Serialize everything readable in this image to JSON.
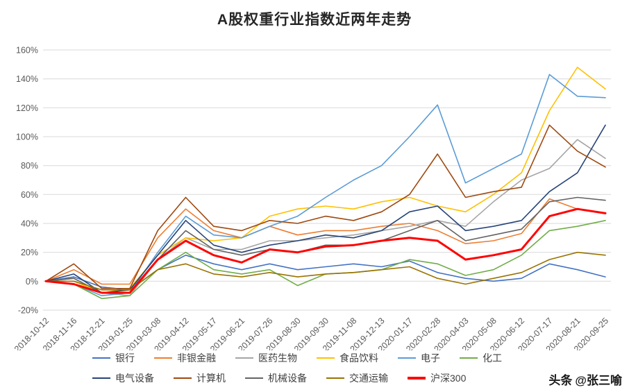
{
  "title": "A股权重行业指数近两年走势",
  "watermark": {
    "logo": "头条",
    "handle": "@张三喻"
  },
  "chart_data": {
    "type": "line",
    "title": "A股权重行业指数近两年走势",
    "xlabel": "",
    "ylabel": "",
    "ylim": [
      -20,
      160
    ],
    "ytick_step": 20,
    "ytick_suffix": "%",
    "grid": "horizontal",
    "legend_position": "bottom",
    "categories": [
      "2018-10-12",
      "2018-11-16",
      "2018-12-21",
      "2019-01-25",
      "2019-03-08",
      "2019-04-12",
      "2019-05-17",
      "2019-06-21",
      "2019-07-26",
      "2019-08-30",
      "2019-09-30",
      "2019-11-08",
      "2019-12-13",
      "2020-01-17",
      "2020-02-28",
      "2020-04-03",
      "2020-05-08",
      "2020-06-12",
      "2020-07-17",
      "2020-08-21",
      "2020-09-25"
    ],
    "series": [
      {
        "name": "银行",
        "color": "#4472C4",
        "width": 1.6,
        "values": [
          0,
          3,
          -4,
          -6,
          8,
          18,
          12,
          8,
          12,
          8,
          10,
          12,
          10,
          14,
          6,
          2,
          0,
          2,
          12,
          8,
          3
        ]
      },
      {
        "name": "非银金融",
        "color": "#ED7D31",
        "width": 1.6,
        "values": [
          0,
          8,
          -2,
          -2,
          30,
          50,
          35,
          30,
          38,
          32,
          35,
          35,
          38,
          40,
          35,
          26,
          28,
          33,
          57,
          50,
          47
        ]
      },
      {
        "name": "医药生物",
        "color": "#A5A5A5",
        "width": 1.6,
        "values": [
          0,
          2,
          -8,
          -10,
          15,
          30,
          22,
          22,
          28,
          28,
          30,
          32,
          35,
          38,
          42,
          38,
          55,
          70,
          78,
          98,
          85
        ]
      },
      {
        "name": "食品饮料",
        "color": "#FFC000",
        "width": 1.6,
        "values": [
          0,
          0,
          -8,
          -5,
          18,
          30,
          28,
          30,
          45,
          50,
          52,
          50,
          55,
          58,
          52,
          48,
          60,
          75,
          118,
          148,
          133
        ]
      },
      {
        "name": "电子",
        "color": "#5B9BD5",
        "width": 1.6,
        "values": [
          0,
          -2,
          -10,
          -8,
          20,
          45,
          32,
          30,
          38,
          45,
          58,
          70,
          80,
          100,
          122,
          68,
          78,
          88,
          143,
          128,
          127
        ]
      },
      {
        "name": "化工",
        "color": "#70AD47",
        "width": 1.6,
        "values": [
          0,
          -2,
          -12,
          -10,
          8,
          20,
          8,
          5,
          8,
          -3,
          5,
          6,
          8,
          15,
          12,
          4,
          8,
          18,
          35,
          38,
          42
        ]
      },
      {
        "name": "电气设备",
        "color": "#264478",
        "width": 1.6,
        "values": [
          0,
          5,
          -8,
          -6,
          18,
          42,
          25,
          20,
          25,
          28,
          32,
          30,
          35,
          48,
          52,
          35,
          38,
          42,
          62,
          75,
          108
        ]
      },
      {
        "name": "计算机",
        "color": "#9E480E",
        "width": 1.6,
        "values": [
          0,
          12,
          -5,
          -5,
          35,
          58,
          38,
          35,
          42,
          40,
          45,
          42,
          48,
          60,
          88,
          58,
          62,
          65,
          108,
          90,
          79
        ]
      },
      {
        "name": "机械设备",
        "color": "#636363",
        "width": 1.6,
        "values": [
          0,
          2,
          -8,
          -8,
          15,
          35,
          22,
          18,
          22,
          20,
          25,
          25,
          28,
          35,
          42,
          28,
          32,
          36,
          55,
          58,
          56
        ]
      },
      {
        "name": "交通运输",
        "color": "#997300",
        "width": 1.6,
        "values": [
          0,
          0,
          -6,
          -6,
          8,
          12,
          5,
          3,
          6,
          3,
          5,
          6,
          8,
          10,
          2,
          -2,
          2,
          6,
          15,
          20,
          18
        ]
      },
      {
        "name": "沪深300",
        "color": "#FF0000",
        "width": 3,
        "values": [
          0,
          -2,
          -8,
          -8,
          15,
          28,
          18,
          13,
          22,
          20,
          24,
          25,
          28,
          30,
          28,
          15,
          18,
          22,
          45,
          50,
          47
        ]
      }
    ]
  }
}
